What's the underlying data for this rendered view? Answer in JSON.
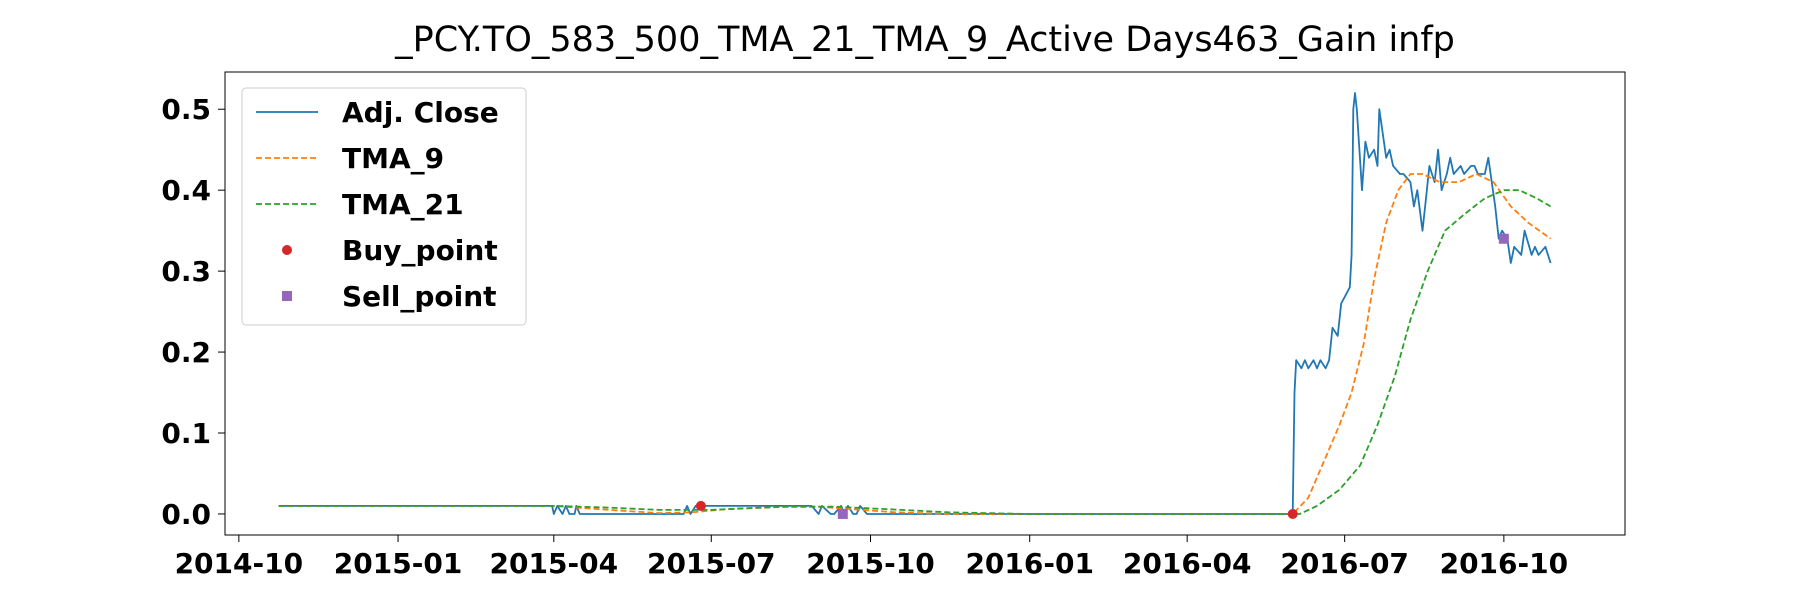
{
  "chart_data": {
    "type": "line",
    "title": "_PCY.TO_583_500_TMA_21_TMA_9_Active Days463_Gain    infp",
    "xlabel": "",
    "ylabel": "",
    "xlim": [
      "2014-09-23",
      "2016-12-10"
    ],
    "ylim": [
      -0.026,
      0.546
    ],
    "grid": false,
    "legend_position": "upper-left",
    "x_ticks": [
      "2014-10",
      "2015-01",
      "2015-04",
      "2015-07",
      "2015-10",
      "2016-01",
      "2016-04",
      "2016-07",
      "2016-10"
    ],
    "y_ticks": [
      "0.0",
      "0.1",
      "0.2",
      "0.3",
      "0.4",
      "0.5"
    ],
    "series": [
      {
        "name": "Adj. Close",
        "style": "solid",
        "color": "#1f77b4",
        "points": [
          [
            "2014-10-24",
            0.01
          ],
          [
            "2015-03-31",
            0.01
          ],
          [
            "2015-04-01",
            0.0
          ],
          [
            "2015-04-03",
            0.01
          ],
          [
            "2015-04-06",
            0.0
          ],
          [
            "2015-04-08",
            0.01
          ],
          [
            "2015-04-10",
            0.0
          ],
          [
            "2015-04-13",
            0.0
          ],
          [
            "2015-04-14",
            0.01
          ],
          [
            "2015-04-16",
            0.0
          ],
          [
            "2015-06-15",
            0.0
          ],
          [
            "2015-06-17",
            0.01
          ],
          [
            "2015-06-19",
            0.0
          ],
          [
            "2015-06-22",
            0.01
          ],
          [
            "2015-08-28",
            0.01
          ],
          [
            "2015-09-01",
            0.0
          ],
          [
            "2015-09-03",
            0.01
          ],
          [
            "2015-09-08",
            0.0
          ],
          [
            "2015-09-10",
            0.0
          ],
          [
            "2015-09-14",
            0.01
          ],
          [
            "2015-09-16",
            0.0
          ],
          [
            "2015-09-18",
            0.01
          ],
          [
            "2015-09-21",
            0.0
          ],
          [
            "2015-09-23",
            0.0
          ],
          [
            "2015-09-25",
            0.01
          ],
          [
            "2015-09-29",
            0.0
          ],
          [
            "2016-06-01",
            0.0
          ],
          [
            "2016-06-02",
            0.15
          ],
          [
            "2016-06-03",
            0.19
          ],
          [
            "2016-06-06",
            0.18
          ],
          [
            "2016-06-08",
            0.19
          ],
          [
            "2016-06-10",
            0.18
          ],
          [
            "2016-06-13",
            0.19
          ],
          [
            "2016-06-15",
            0.18
          ],
          [
            "2016-06-17",
            0.19
          ],
          [
            "2016-06-20",
            0.18
          ],
          [
            "2016-06-22",
            0.19
          ],
          [
            "2016-06-24",
            0.23
          ],
          [
            "2016-06-27",
            0.22
          ],
          [
            "2016-06-29",
            0.26
          ],
          [
            "2016-07-04",
            0.28
          ],
          [
            "2016-07-05",
            0.32
          ],
          [
            "2016-07-06",
            0.5
          ],
          [
            "2016-07-07",
            0.52
          ],
          [
            "2016-07-08",
            0.5
          ],
          [
            "2016-07-11",
            0.4
          ],
          [
            "2016-07-13",
            0.46
          ],
          [
            "2016-07-15",
            0.44
          ],
          [
            "2016-07-18",
            0.45
          ],
          [
            "2016-07-20",
            0.43
          ],
          [
            "2016-07-21",
            0.5
          ],
          [
            "2016-07-25",
            0.44
          ],
          [
            "2016-07-27",
            0.45
          ],
          [
            "2016-07-29",
            0.43
          ],
          [
            "2016-08-02",
            0.42
          ],
          [
            "2016-08-04",
            0.42
          ],
          [
            "2016-08-08",
            0.41
          ],
          [
            "2016-08-10",
            0.38
          ],
          [
            "2016-08-12",
            0.4
          ],
          [
            "2016-08-15",
            0.35
          ],
          [
            "2016-08-17",
            0.39
          ],
          [
            "2016-08-19",
            0.43
          ],
          [
            "2016-08-22",
            0.41
          ],
          [
            "2016-08-24",
            0.45
          ],
          [
            "2016-08-26",
            0.4
          ],
          [
            "2016-08-29",
            0.42
          ],
          [
            "2016-08-31",
            0.44
          ],
          [
            "2016-09-02",
            0.42
          ],
          [
            "2016-09-06",
            0.43
          ],
          [
            "2016-09-08",
            0.42
          ],
          [
            "2016-09-12",
            0.43
          ],
          [
            "2016-09-14",
            0.43
          ],
          [
            "2016-09-16",
            0.42
          ],
          [
            "2016-09-20",
            0.42
          ],
          [
            "2016-09-22",
            0.44
          ],
          [
            "2016-09-26",
            0.38
          ],
          [
            "2016-09-28",
            0.34
          ],
          [
            "2016-09-30",
            0.35
          ],
          [
            "2016-10-03",
            0.34
          ],
          [
            "2016-10-05",
            0.31
          ],
          [
            "2016-10-07",
            0.33
          ],
          [
            "2016-10-11",
            0.32
          ],
          [
            "2016-10-13",
            0.35
          ],
          [
            "2016-10-17",
            0.32
          ],
          [
            "2016-10-19",
            0.33
          ],
          [
            "2016-10-21",
            0.32
          ],
          [
            "2016-10-25",
            0.33
          ],
          [
            "2016-10-28",
            0.31
          ]
        ]
      },
      {
        "name": "TMA_9",
        "style": "dashed",
        "color": "#ff7f0e",
        "points": [
          [
            "2014-10-24",
            0.01
          ],
          [
            "2015-04-01",
            0.01
          ],
          [
            "2015-04-20",
            0.007
          ],
          [
            "2015-05-10",
            0.004
          ],
          [
            "2015-06-01",
            0.001
          ],
          [
            "2015-06-20",
            0.002
          ],
          [
            "2015-07-10",
            0.006
          ],
          [
            "2015-08-15",
            0.009
          ],
          [
            "2015-09-01",
            0.009
          ],
          [
            "2015-09-20",
            0.006
          ],
          [
            "2015-10-15",
            0.002
          ],
          [
            "2015-11-15",
            0.0
          ],
          [
            "2016-06-01",
            0.0
          ],
          [
            "2016-06-10",
            0.02
          ],
          [
            "2016-06-18",
            0.06
          ],
          [
            "2016-06-28",
            0.11
          ],
          [
            "2016-07-05",
            0.15
          ],
          [
            "2016-07-12",
            0.21
          ],
          [
            "2016-07-18",
            0.29
          ],
          [
            "2016-07-25",
            0.36
          ],
          [
            "2016-08-01",
            0.4
          ],
          [
            "2016-08-08",
            0.42
          ],
          [
            "2016-08-15",
            0.42
          ],
          [
            "2016-08-25",
            0.41
          ],
          [
            "2016-09-05",
            0.41
          ],
          [
            "2016-09-15",
            0.42
          ],
          [
            "2016-09-25",
            0.41
          ],
          [
            "2016-10-05",
            0.38
          ],
          [
            "2016-10-15",
            0.36
          ],
          [
            "2016-10-28",
            0.34
          ]
        ]
      },
      {
        "name": "TMA_21",
        "style": "dashed",
        "color": "#2ca02c",
        "points": [
          [
            "2014-10-24",
            0.01
          ],
          [
            "2015-04-01",
            0.01
          ],
          [
            "2015-05-01",
            0.008
          ],
          [
            "2015-06-01",
            0.005
          ],
          [
            "2015-07-01",
            0.005
          ],
          [
            "2015-08-10",
            0.009
          ],
          [
            "2015-09-10",
            0.009
          ],
          [
            "2015-10-10",
            0.006
          ],
          [
            "2015-11-15",
            0.002
          ],
          [
            "2016-01-01",
            0.0
          ],
          [
            "2016-06-05",
            0.0
          ],
          [
            "2016-06-15",
            0.01
          ],
          [
            "2016-06-28",
            0.03
          ],
          [
            "2016-07-10",
            0.06
          ],
          [
            "2016-07-20",
            0.11
          ],
          [
            "2016-07-30",
            0.17
          ],
          [
            "2016-08-08",
            0.24
          ],
          [
            "2016-08-18",
            0.3
          ],
          [
            "2016-08-28",
            0.35
          ],
          [
            "2016-09-08",
            0.37
          ],
          [
            "2016-09-20",
            0.39
          ],
          [
            "2016-10-01",
            0.4
          ],
          [
            "2016-10-10",
            0.4
          ],
          [
            "2016-10-20",
            0.39
          ],
          [
            "2016-10-28",
            0.38
          ]
        ]
      }
    ],
    "markers": [
      {
        "name": "Buy_point",
        "shape": "circle",
        "color": "#d62728",
        "points": [
          [
            "2015-06-25",
            0.01
          ],
          [
            "2016-06-01",
            0.0
          ]
        ]
      },
      {
        "name": "Sell_point",
        "shape": "square",
        "color": "#9467bd",
        "points": [
          [
            "2015-09-15",
            0.0
          ],
          [
            "2016-10-01",
            0.34
          ]
        ]
      }
    ]
  }
}
